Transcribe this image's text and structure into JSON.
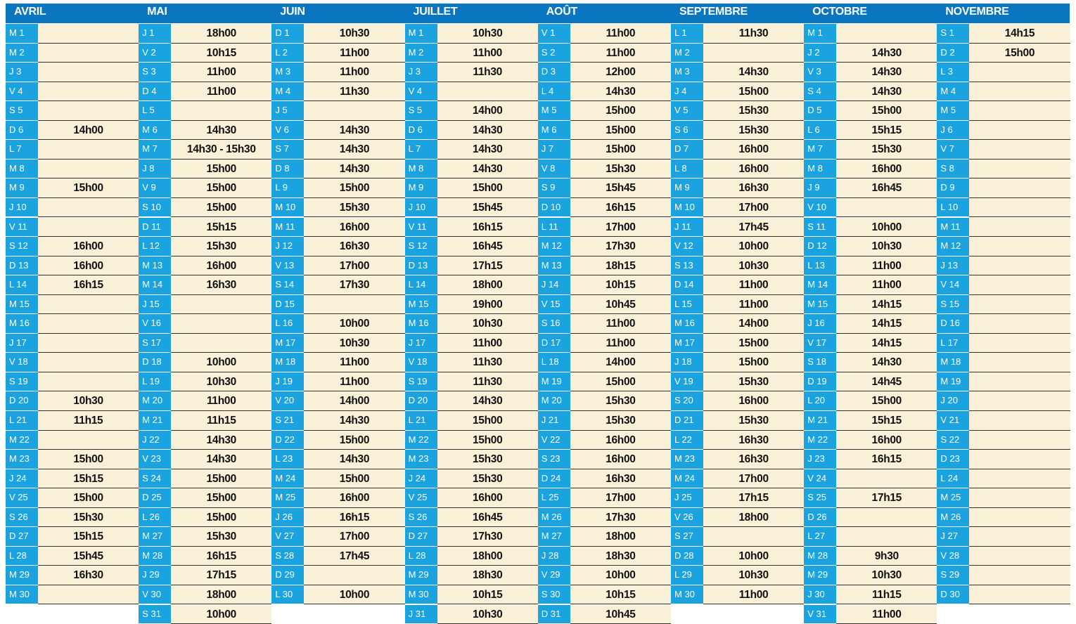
{
  "months": [
    {
      "name": "AVRIL",
      "days": [
        [
          "M 1",
          null
        ],
        [
          "M 2",
          null
        ],
        [
          "J 3",
          null
        ],
        [
          "V 4",
          null
        ],
        [
          "S 5",
          null
        ],
        [
          "D 6",
          "14h00"
        ],
        [
          "L 7",
          null
        ],
        [
          "M 8",
          null
        ],
        [
          "M 9",
          "15h00"
        ],
        [
          "J 10",
          null
        ],
        [
          "V 11",
          null
        ],
        [
          "S 12",
          "16h00"
        ],
        [
          "D 13",
          "16h00"
        ],
        [
          "L 14",
          "16h15"
        ],
        [
          "M 15",
          null
        ],
        [
          "M 16",
          null
        ],
        [
          "J 17",
          null
        ],
        [
          "V 18",
          null
        ],
        [
          "S 19",
          null
        ],
        [
          "D 20",
          "10h30"
        ],
        [
          "L 21",
          "11h15"
        ],
        [
          "M 22",
          null
        ],
        [
          "M 23",
          "15h00"
        ],
        [
          "J 24",
          "15h15"
        ],
        [
          "V 25",
          "15h00"
        ],
        [
          "S 26",
          "15h30"
        ],
        [
          "D 27",
          "15h15"
        ],
        [
          "L 28",
          "15h45"
        ],
        [
          "M 29",
          "16h30"
        ],
        [
          "M 30",
          null
        ]
      ]
    },
    {
      "name": "MAI",
      "days": [
        [
          "J 1",
          "18h00"
        ],
        [
          "V 2",
          "10h15"
        ],
        [
          "S 3",
          "11h00"
        ],
        [
          "D 4",
          "11h00"
        ],
        [
          "L 5",
          null
        ],
        [
          "M 6",
          "14h30"
        ],
        [
          "M 7",
          "14h30 - 15h30"
        ],
        [
          "J 8",
          "15h00"
        ],
        [
          "V 9",
          "15h00"
        ],
        [
          "S 10",
          "15h00"
        ],
        [
          "D 11",
          "15h15"
        ],
        [
          "L 12",
          "15h30"
        ],
        [
          "M 13",
          "16h00"
        ],
        [
          "M 14",
          "16h30"
        ],
        [
          "J 15",
          null
        ],
        [
          "V 16",
          null
        ],
        [
          "S 17",
          null
        ],
        [
          "D 18",
          "10h00"
        ],
        [
          "L 19",
          "10h30"
        ],
        [
          "M 20",
          "11h00"
        ],
        [
          "M 21",
          "11h15"
        ],
        [
          "J 22",
          "14h30"
        ],
        [
          "V 23",
          "14h30"
        ],
        [
          "S 24",
          "15h00"
        ],
        [
          "D 25",
          "15h00"
        ],
        [
          "L 26",
          "15h00"
        ],
        [
          "M 27",
          "15h30"
        ],
        [
          "M 28",
          "16h15"
        ],
        [
          "J 29",
          "17h15"
        ],
        [
          "V 30",
          "18h00"
        ],
        [
          "S 31",
          "10h00"
        ]
      ]
    },
    {
      "name": "JUIN",
      "days": [
        [
          "D 1",
          "10h30"
        ],
        [
          "L 2",
          "11h00"
        ],
        [
          "M 3",
          "11h00"
        ],
        [
          "M 4",
          "11h30"
        ],
        [
          "J 5",
          null
        ],
        [
          "V 6",
          "14h30"
        ],
        [
          "S 7",
          "14h30"
        ],
        [
          "D 8",
          "14h30"
        ],
        [
          "L 9",
          "15h00"
        ],
        [
          "M 10",
          "15h30"
        ],
        [
          "M 11",
          "16h00"
        ],
        [
          "J 12",
          "16h30"
        ],
        [
          "V 13",
          "17h00"
        ],
        [
          "S 14",
          "17h30"
        ],
        [
          "D 15",
          null
        ],
        [
          "L 16",
          "10h00"
        ],
        [
          "M 17",
          "10h30"
        ],
        [
          "M 18",
          "11h00"
        ],
        [
          "J 19",
          "11h00"
        ],
        [
          "V 20",
          "14h00"
        ],
        [
          "S 21",
          "14h30"
        ],
        [
          "D 22",
          "15h00"
        ],
        [
          "L 23",
          "14h30"
        ],
        [
          "M 24",
          "15h00"
        ],
        [
          "M 25",
          "16h00"
        ],
        [
          "J 26",
          "16h15"
        ],
        [
          "V 27",
          "17h00"
        ],
        [
          "S 28",
          "17h45"
        ],
        [
          "D 29",
          null
        ],
        [
          "L 30",
          "10h00"
        ]
      ]
    },
    {
      "name": "JUILLET",
      "days": [
        [
          "M 1",
          "10h30"
        ],
        [
          "M 2",
          "11h00"
        ],
        [
          "J 3",
          "11h30"
        ],
        [
          "V 4",
          null
        ],
        [
          "S 5",
          "14h00"
        ],
        [
          "D 6",
          "14h30"
        ],
        [
          "L 7",
          "14h30"
        ],
        [
          "M 8",
          "14h30"
        ],
        [
          "M 9",
          "15h00"
        ],
        [
          "J 10",
          "15h45"
        ],
        [
          "V 11",
          "16h15"
        ],
        [
          "S 12",
          "16h45"
        ],
        [
          "D 13",
          "17h15"
        ],
        [
          "L 14",
          "18h00"
        ],
        [
          "M 15",
          "19h00"
        ],
        [
          "M 16",
          "10h30"
        ],
        [
          "J 17",
          "11h00"
        ],
        [
          "V 18",
          "11h30"
        ],
        [
          "S 19",
          "11h30"
        ],
        [
          "D 20",
          "14h30"
        ],
        [
          "L 21",
          "15h00"
        ],
        [
          "M 22",
          "15h00"
        ],
        [
          "M 23",
          "15h30"
        ],
        [
          "J 24",
          "15h30"
        ],
        [
          "V 25",
          "16h00"
        ],
        [
          "S 26",
          "16h45"
        ],
        [
          "D 27",
          "17h30"
        ],
        [
          "L 28",
          "18h00"
        ],
        [
          "M 29",
          "18h30"
        ],
        [
          "M 30",
          "10h15"
        ],
        [
          "J 31",
          "10h30"
        ]
      ]
    },
    {
      "name": "AOÛT",
      "days": [
        [
          "V 1",
          "11h00"
        ],
        [
          "S 2",
          "11h00"
        ],
        [
          "D 3",
          "12h00"
        ],
        [
          "L 4",
          "14h30"
        ],
        [
          "M 5",
          "15h00"
        ],
        [
          "M 6",
          "15h00"
        ],
        [
          "J 7",
          "15h00"
        ],
        [
          "V 8",
          "15h30"
        ],
        [
          "S 9",
          "15h45"
        ],
        [
          "D 10",
          "16h15"
        ],
        [
          "L 11",
          "17h00"
        ],
        [
          "M 12",
          "17h30"
        ],
        [
          "M 13",
          "18h15"
        ],
        [
          "J 14",
          "10h15"
        ],
        [
          "V 15",
          "10h45"
        ],
        [
          "S 16",
          "11h00"
        ],
        [
          "D 17",
          "11h00"
        ],
        [
          "L 18",
          "14h00"
        ],
        [
          "M 19",
          "15h00"
        ],
        [
          "M 20",
          "15h30"
        ],
        [
          "J 21",
          "15h30"
        ],
        [
          "V 22",
          "16h00"
        ],
        [
          "S 23",
          "16h00"
        ],
        [
          "D 24",
          "16h30"
        ],
        [
          "L 25",
          "17h00"
        ],
        [
          "M 26",
          "17h30"
        ],
        [
          "M 27",
          "18h00"
        ],
        [
          "J 28",
          "18h30"
        ],
        [
          "V 29",
          "10h00"
        ],
        [
          "S 30",
          "10h15"
        ],
        [
          "D 31",
          "10h45"
        ]
      ]
    },
    {
      "name": "SEPTEMBRE",
      "days": [
        [
          "L 1",
          "11h30"
        ],
        [
          "M 2",
          null
        ],
        [
          "M 3",
          "14h30"
        ],
        [
          "J 4",
          "15h00"
        ],
        [
          "V 5",
          "15h30"
        ],
        [
          "S 6",
          "15h30"
        ],
        [
          "D 7",
          "16h00"
        ],
        [
          "L 8",
          "16h00"
        ],
        [
          "M 9",
          "16h30"
        ],
        [
          "M 10",
          "17h00"
        ],
        [
          "J 11",
          "17h45"
        ],
        [
          "V 12",
          "10h00"
        ],
        [
          "S 13",
          "10h30"
        ],
        [
          "D 14",
          "11h00"
        ],
        [
          "L 15",
          "11h00"
        ],
        [
          "M 16",
          "14h00"
        ],
        [
          "M 17",
          "15h00"
        ],
        [
          "J 18",
          "15h00"
        ],
        [
          "V 19",
          "15h30"
        ],
        [
          "S 20",
          "16h00"
        ],
        [
          "D 21",
          "15h30"
        ],
        [
          "L 22",
          "16h30"
        ],
        [
          "M 23",
          "16h30"
        ],
        [
          "M 24",
          "17h00"
        ],
        [
          "J 25",
          "17h15"
        ],
        [
          "V 26",
          "18h00"
        ],
        [
          "S 27",
          null
        ],
        [
          "D 28",
          "10h00"
        ],
        [
          "L 29",
          "10h30"
        ],
        [
          "M 30",
          "11h00"
        ]
      ]
    },
    {
      "name": "OCTOBRE",
      "days": [
        [
          "M 1",
          null
        ],
        [
          "J 2",
          "14h30"
        ],
        [
          "V 3",
          "14h30"
        ],
        [
          "S 4",
          "14h30"
        ],
        [
          "D 5",
          "15h00"
        ],
        [
          "L 6",
          "15h15"
        ],
        [
          "M 7",
          "15h30"
        ],
        [
          "M 8",
          "16h00"
        ],
        [
          "J 9",
          "16h45"
        ],
        [
          "V 10",
          null
        ],
        [
          "S 11",
          "10h00"
        ],
        [
          "D 12",
          "10h30"
        ],
        [
          "L 13",
          "11h00"
        ],
        [
          "M 14",
          "11h00"
        ],
        [
          "M 15",
          "14h15"
        ],
        [
          "J 16",
          "14h15"
        ],
        [
          "V 17",
          "14h15"
        ],
        [
          "S 18",
          "14h30"
        ],
        [
          "D 19",
          "14h45"
        ],
        [
          "L 20",
          "15h00"
        ],
        [
          "M 21",
          "15h15"
        ],
        [
          "M 22",
          "16h00"
        ],
        [
          "J 23",
          "16h15"
        ],
        [
          "V 24",
          null
        ],
        [
          "S 25",
          "17h15"
        ],
        [
          "D 26",
          null
        ],
        [
          "L 27",
          null
        ],
        [
          "M 28",
          "9h30"
        ],
        [
          "M 29",
          "10h30"
        ],
        [
          "J 30",
          "11h15"
        ],
        [
          "V 31",
          "11h00"
        ]
      ]
    },
    {
      "name": "NOVEMBRE",
      "days": [
        [
          "S 1",
          "14h15"
        ],
        [
          "D 2",
          "15h00"
        ],
        [
          "L 3",
          null
        ],
        [
          "M 4",
          null
        ],
        [
          "M 5",
          null
        ],
        [
          "J 6",
          null
        ],
        [
          "V 7",
          null
        ],
        [
          "S 8",
          null
        ],
        [
          "D 9",
          null
        ],
        [
          "L 10",
          null
        ],
        [
          "M 11",
          null
        ],
        [
          "M 12",
          null
        ],
        [
          "J 13",
          null
        ],
        [
          "V 14",
          null
        ],
        [
          "S 15",
          null
        ],
        [
          "D 16",
          null
        ],
        [
          "L 17",
          null
        ],
        [
          "M 18",
          null
        ],
        [
          "M 19",
          null
        ],
        [
          "J 20",
          null
        ],
        [
          "V 21",
          null
        ],
        [
          "S 22",
          null
        ],
        [
          "D 23",
          null
        ],
        [
          "L 24",
          null
        ],
        [
          "M 25",
          null
        ],
        [
          "M 26",
          null
        ],
        [
          "J 27",
          null
        ],
        [
          "V 28",
          null
        ],
        [
          "S 29",
          null
        ],
        [
          "D 30",
          null
        ]
      ]
    }
  ]
}
